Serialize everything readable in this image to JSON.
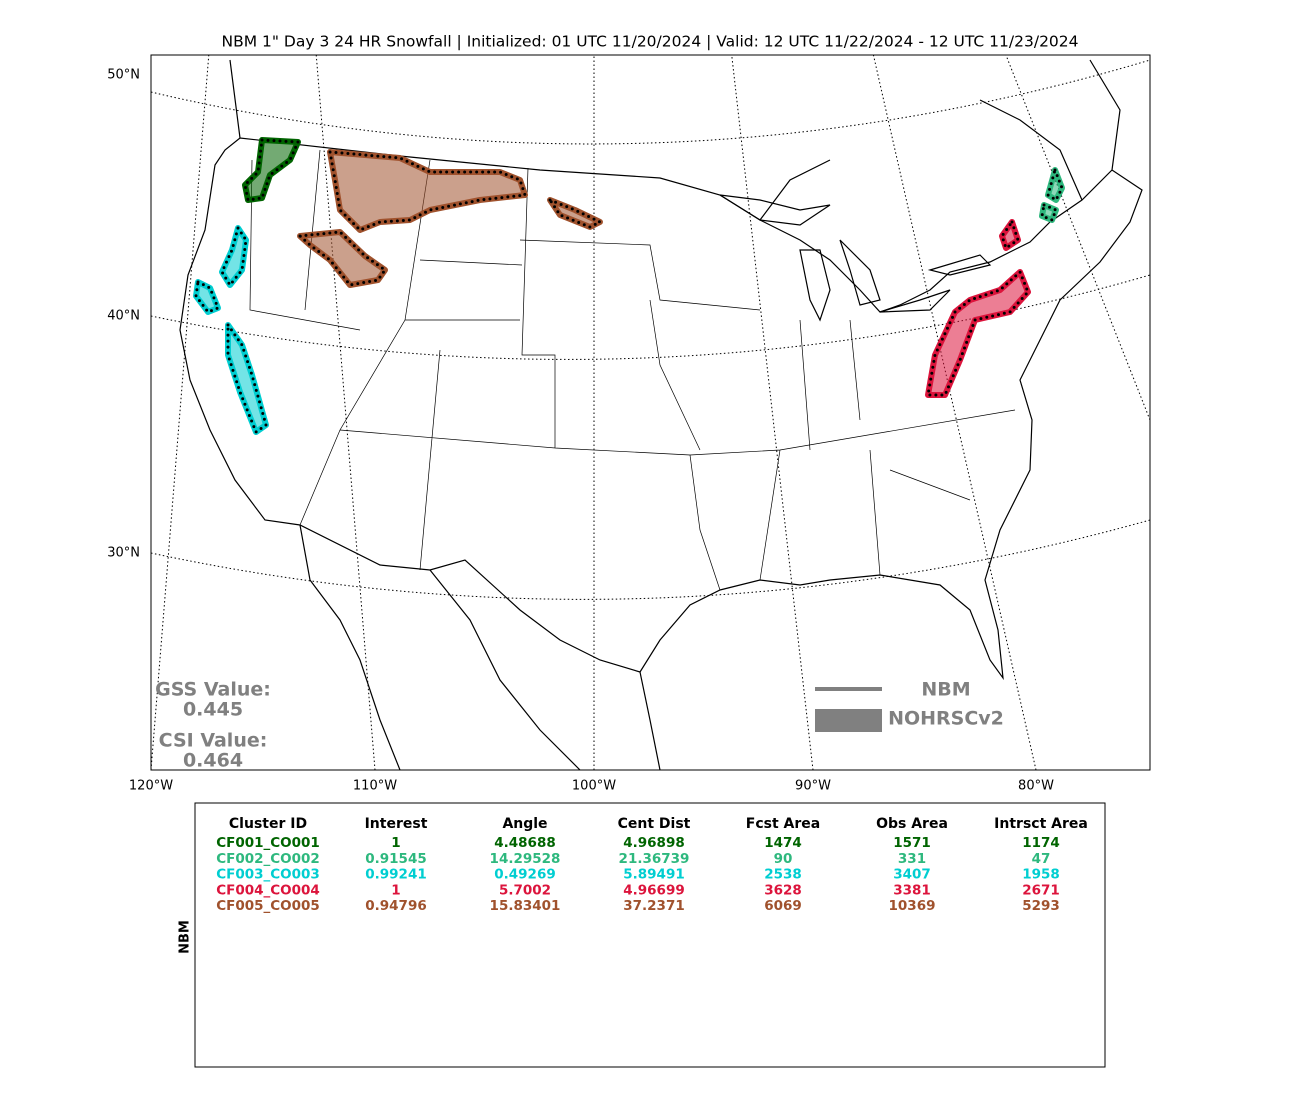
{
  "title": "NBM 1\" Day 3 24 HR Snowfall | Initialized: 01 UTC 11/20/2024 | Valid: 12 UTC 11/22/2024 - 12 UTC 11/23/2024",
  "map": {
    "lat_labels": [
      "50°N",
      "40°N",
      "30°N"
    ],
    "lon_labels": [
      "120°W",
      "110°W",
      "100°W",
      "90°W",
      "80°W"
    ],
    "gss_label": "GSS Value:",
    "gss_value": 0.445,
    "csi_label": "CSI Value:",
    "csi_value": 0.464,
    "legend": [
      "NBM",
      "NOHRSCv2"
    ]
  },
  "table": {
    "side_label": "NBM",
    "columns": [
      "Cluster ID",
      "Interest",
      "Angle",
      "Cent Dist",
      "Fcst Area",
      "Obs Area",
      "Intrsct Area"
    ],
    "rows": [
      [
        "CF001_CO001",
        1,
        4.48688,
        4.96898,
        1474,
        1571,
        1174
      ],
      [
        "CF002_CO002",
        0.91545,
        14.29528,
        21.36739,
        90,
        331,
        47
      ],
      [
        "CF003_CO003",
        0.99241,
        0.49269,
        5.89491,
        2538,
        3407,
        1958
      ],
      [
        "CF004_CO004",
        1,
        5.7002,
        4.96699,
        3628,
        3381,
        2671
      ],
      [
        "CF005_CO005",
        0.94796,
        15.83401,
        37.2371,
        6069,
        10369,
        5293
      ]
    ],
    "row_colors": [
      "#006400",
      "#2eb87e",
      "#00ced1",
      "#dc143c",
      "#a0522d"
    ]
  }
}
